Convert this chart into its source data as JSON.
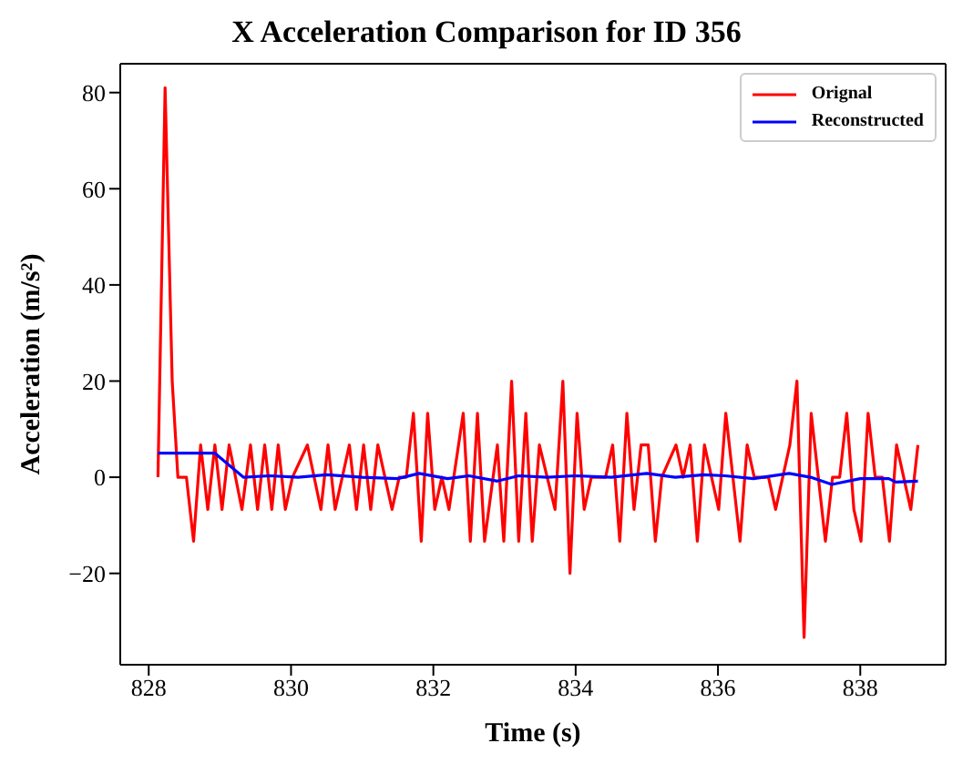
{
  "chart_data": {
    "type": "line",
    "title": "X Acceleration Comparison for ID 356",
    "xlabel": "Time (s)",
    "ylabel": "Acceleration (m/s²)",
    "xlim": [
      827.6,
      839.2
    ],
    "xticks": [
      828,
      830,
      832,
      834,
      836,
      838
    ],
    "ylim": [
      -39,
      86
    ],
    "yticks": [
      -20,
      0,
      20,
      40,
      60,
      80
    ],
    "legend": "top right",
    "marker": "none",
    "line_style": "solid",
    "series": [
      {
        "name": "Orignal",
        "color": "#ff0000",
        "x": [
          828.13,
          828.23,
          828.33,
          828.41,
          828.53,
          828.63,
          828.73,
          828.83,
          828.93,
          829.03,
          829.13,
          829.31,
          829.43,
          829.53,
          829.63,
          829.73,
          829.82,
          829.92,
          830.02,
          830.23,
          830.42,
          830.52,
          830.62,
          830.82,
          830.92,
          831.02,
          831.12,
          831.22,
          831.42,
          831.52,
          831.62,
          831.72,
          831.83,
          831.92,
          832.02,
          832.12,
          832.22,
          832.42,
          832.52,
          832.62,
          832.72,
          832.9,
          832.99,
          833.1,
          833.2,
          833.3,
          833.39,
          833.49,
          833.71,
          833.82,
          833.92,
          834.02,
          834.12,
          834.22,
          834.42,
          834.52,
          834.62,
          834.72,
          834.82,
          834.92,
          835.02,
          835.12,
          835.21,
          835.41,
          835.51,
          835.61,
          835.71,
          835.81,
          836.01,
          836.11,
          836.31,
          836.41,
          836.51,
          836.71,
          836.81,
          837.01,
          837.11,
          837.21,
          837.31,
          837.51,
          837.61,
          837.71,
          837.81,
          837.91,
          838.01,
          838.11,
          838.21,
          838.31,
          838.41,
          838.51,
          838.61,
          838.71,
          838.81
        ],
        "values": [
          0,
          81,
          20,
          0,
          0,
          -13.3,
          6.7,
          -6.7,
          6.7,
          -6.7,
          6.7,
          -6.7,
          6.7,
          -6.7,
          6.7,
          -6.7,
          6.7,
          -6.7,
          0,
          6.7,
          -6.7,
          6.7,
          -6.7,
          6.7,
          -6.7,
          6.7,
          -6.7,
          6.7,
          -6.7,
          0,
          0,
          13.3,
          -13.3,
          13.3,
          -6.7,
          0,
          -6.7,
          13.3,
          -13.3,
          13.3,
          -13.3,
          6.7,
          -13.3,
          20,
          -13.3,
          13.3,
          -13.3,
          6.7,
          -6.7,
          20,
          -20,
          13.3,
          -6.7,
          0,
          0,
          6.7,
          -13.3,
          13.3,
          -6.7,
          6.7,
          6.7,
          -13.3,
          0,
          6.7,
          0,
          6.7,
          -13.3,
          6.7,
          -6.7,
          13.3,
          -13.3,
          6.7,
          0,
          0,
          -6.7,
          6.7,
          20,
          -33.3,
          13.3,
          -13.3,
          0,
          0,
          13.3,
          -6.7,
          -13.3,
          13.3,
          0,
          0,
          -13.3,
          6.7,
          0,
          -6.7,
          6.7
        ]
      },
      {
        "name": "Reconstructed",
        "color": "#0000ff",
        "x": [
          828.13,
          828.93,
          829.33,
          829.7,
          830.1,
          830.5,
          831.0,
          831.5,
          831.8,
          832.2,
          832.5,
          832.9,
          833.2,
          833.6,
          834.0,
          834.5,
          835.0,
          835.4,
          835.8,
          836.1,
          836.5,
          837.0,
          837.3,
          837.6,
          838.0,
          838.4,
          838.5,
          838.81
        ],
        "values": [
          5,
          5,
          0,
          0.3,
          0,
          0.5,
          0,
          -0.3,
          0.8,
          -0.3,
          0.3,
          -0.8,
          0.3,
          0,
          0.3,
          0,
          0.8,
          0,
          0.5,
          0.3,
          -0.3,
          0.8,
          0,
          -1.5,
          -0.3,
          -0.3,
          -1,
          -0.8
        ]
      }
    ]
  }
}
